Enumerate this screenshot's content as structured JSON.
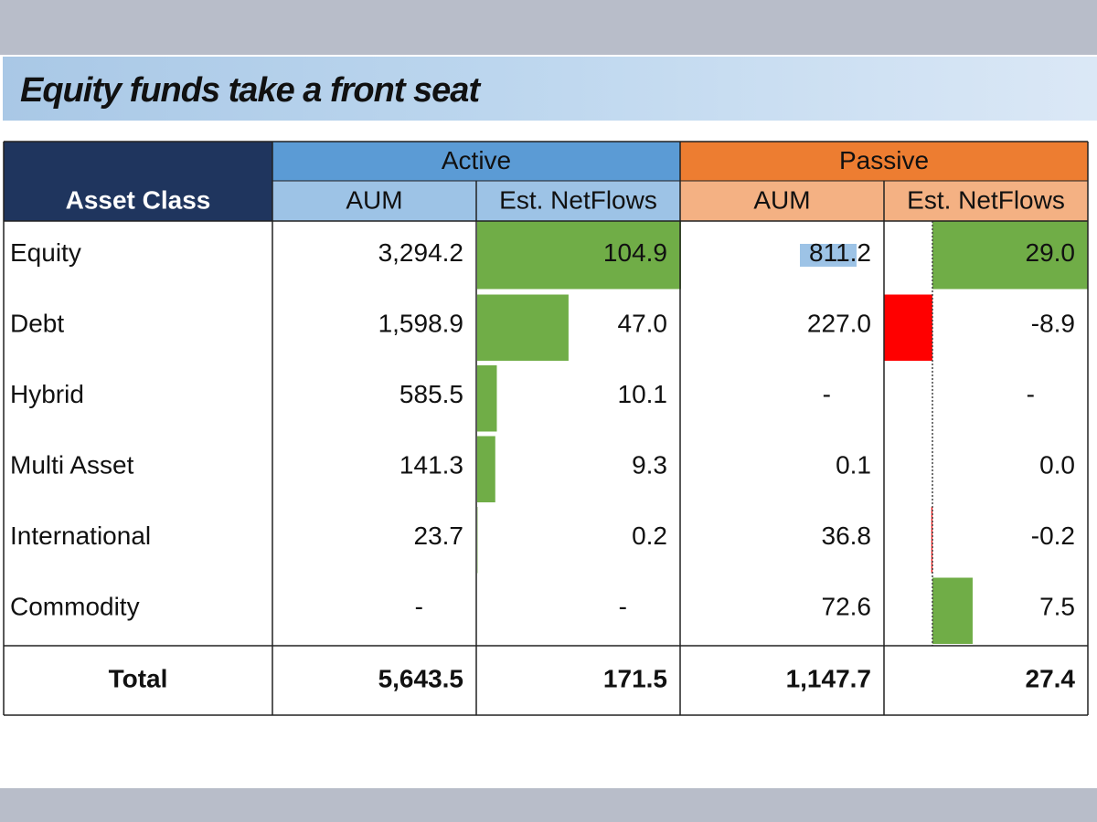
{
  "title": "Equity funds take a front seat",
  "colors": {
    "navy": "#1f355e",
    "active_header": "#5b9bd5",
    "active_subheader": "#9dc3e6",
    "passive_header": "#ed7d31",
    "passive_subheader": "#f4b183",
    "positive_bar": "#70ad47",
    "negative_bar": "#ff0000",
    "aum_bar": "#9dc3e6"
  },
  "headers": {
    "active": "Active",
    "passive": "Passive",
    "asset_class": "Asset Class",
    "columns": [
      "AUM",
      "Est. NetFlows",
      "AUM",
      "Est. NetFlows"
    ]
  },
  "chart_data": {
    "type": "table",
    "groups": [
      "Active",
      "Passive"
    ],
    "columns": [
      "Asset Class",
      "Active AUM",
      "Active Est. NetFlows",
      "Passive AUM",
      "Passive Est. NetFlows"
    ],
    "rows": [
      {
        "asset_class": "Equity",
        "active_aum": "3,294.2",
        "active_flows": "104.9",
        "passive_aum": "811.2",
        "passive_flows": "29.0",
        "active_flows_value": 104.9,
        "passive_aum_value": 811.2,
        "passive_flows_value": 29.0
      },
      {
        "asset_class": "Debt",
        "active_aum": "1,598.9",
        "active_flows": "47.0",
        "passive_aum": "227.0",
        "passive_flows": "-8.9",
        "active_flows_value": 47.0,
        "passive_aum_value": 227.0,
        "passive_flows_value": -8.9
      },
      {
        "asset_class": "Hybrid",
        "active_aum": "585.5",
        "active_flows": "10.1",
        "passive_aum": "-",
        "passive_flows": "-",
        "active_flows_value": 10.1,
        "passive_aum_value": 0,
        "passive_flows_value": 0
      },
      {
        "asset_class": "Multi Asset",
        "active_aum": "141.3",
        "active_flows": "9.3",
        "passive_aum": "0.1",
        "passive_flows": "0.0",
        "active_flows_value": 9.3,
        "passive_aum_value": 0.1,
        "passive_flows_value": 0.0
      },
      {
        "asset_class": "International",
        "active_aum": "23.7",
        "active_flows": "0.2",
        "passive_aum": "36.8",
        "passive_flows": "-0.2",
        "active_flows_value": 0.2,
        "passive_aum_value": 36.8,
        "passive_flows_value": -0.2
      },
      {
        "asset_class": "Commodity",
        "active_aum": "-",
        "active_flows": "-",
        "passive_aum": "72.6",
        "passive_flows": "7.5",
        "active_flows_value": 0,
        "passive_aum_value": 72.6,
        "passive_flows_value": 7.5
      }
    ],
    "total": {
      "label": "Total",
      "active_aum": "5,643.5",
      "active_flows": "171.5",
      "passive_aum": "1,147.7",
      "passive_flows": "27.4"
    },
    "data_bars": {
      "active_flows_max": 104.9,
      "passive_flows_range": [
        -8.9,
        29.0
      ]
    }
  }
}
